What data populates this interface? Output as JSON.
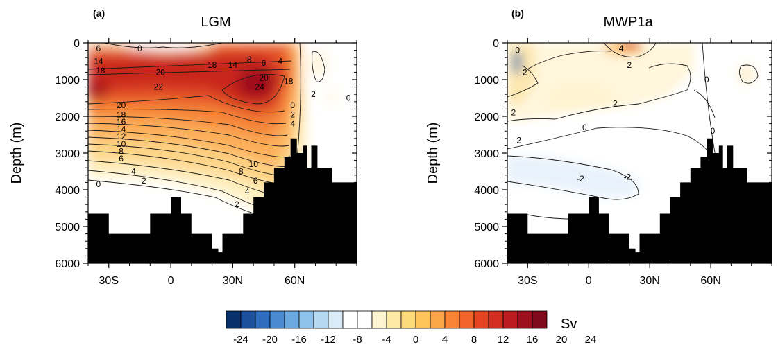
{
  "colorbar": {
    "unit": "Sv",
    "tick_labels": [
      "-24",
      "-20",
      "-16",
      "-12",
      "-8",
      "-4",
      "0",
      "4",
      "8",
      "12",
      "16",
      "20",
      "24"
    ],
    "colors": [
      "#08306b",
      "#1c4f9b",
      "#2f6dbf",
      "#4a8bd0",
      "#6aa8df",
      "#8fc2ea",
      "#b5d9f1",
      "#d9ecf7",
      "#ffffff",
      "#ffffff",
      "#fff4d1",
      "#feeaa6",
      "#fedb7a",
      "#fdc45a",
      "#fca548",
      "#f98438",
      "#f2632c",
      "#e64423",
      "#d32c20",
      "#bb1a1f",
      "#9e0f1e",
      "#7f0a1c"
    ]
  },
  "chart_data": [
    {
      "type": "heatmap",
      "panel_label": "(a)",
      "title": "LGM",
      "xlabel": "",
      "ylabel": "Depth (m)",
      "xlim": [
        -40,
        90
      ],
      "ylim": [
        6000,
        0
      ],
      "x_ticks": [
        -30,
        0,
        30,
        60
      ],
      "x_tick_labels": [
        "30S",
        "0",
        "30N",
        "60N"
      ],
      "y_ticks": [
        0,
        1000,
        2000,
        3000,
        4000,
        5000,
        6000
      ],
      "y_tick_labels": [
        "0",
        "1000",
        "2000",
        "3000",
        "4000",
        "5000",
        "6000"
      ],
      "contour_labels": [
        {
          "text": "0",
          "x": -15,
          "y": 150
        },
        {
          "text": "6",
          "x": -35,
          "y": 150
        },
        {
          "text": "14",
          "x": -35,
          "y": 500
        },
        {
          "text": "18",
          "x": -34,
          "y": 750
        },
        {
          "text": "20",
          "x": -5,
          "y": 800
        },
        {
          "text": "22",
          "x": -6,
          "y": 1200
        },
        {
          "text": "18",
          "x": 20,
          "y": 600
        },
        {
          "text": "14",
          "x": 30,
          "y": 600
        },
        {
          "text": "8",
          "x": 38,
          "y": 450
        },
        {
          "text": "6",
          "x": 45,
          "y": 550
        },
        {
          "text": "4",
          "x": 53,
          "y": 500
        },
        {
          "text": "24",
          "x": 43,
          "y": 1200
        },
        {
          "text": "20",
          "x": 45,
          "y": 950
        },
        {
          "text": "18",
          "x": 57,
          "y": 1050
        },
        {
          "text": "2",
          "x": 69,
          "y": 1400
        },
        {
          "text": "0",
          "x": 86,
          "y": 1500
        },
        {
          "text": "20",
          "x": -24,
          "y": 1700
        },
        {
          "text": "18",
          "x": -24,
          "y": 1950
        },
        {
          "text": "16",
          "x": -24,
          "y": 2150
        },
        {
          "text": "14",
          "x": -24,
          "y": 2350
        },
        {
          "text": "12",
          "x": -24,
          "y": 2550
        },
        {
          "text": "10",
          "x": -24,
          "y": 2750
        },
        {
          "text": "8",
          "x": -24,
          "y": 2950
        },
        {
          "text": "6",
          "x": -24,
          "y": 3150
        },
        {
          "text": "4",
          "x": -18,
          "y": 3500
        },
        {
          "text": "0",
          "x": -35,
          "y": 3850
        },
        {
          "text": "2",
          "x": -13,
          "y": 3750
        },
        {
          "text": "10",
          "x": 40,
          "y": 3300
        },
        {
          "text": "8",
          "x": 34,
          "y": 3500
        },
        {
          "text": "6",
          "x": 41,
          "y": 3750
        },
        {
          "text": "4",
          "x": 37,
          "y": 4050
        },
        {
          "text": "2",
          "x": 32,
          "y": 4400
        },
        {
          "text": "0",
          "x": 59,
          "y": 1700
        },
        {
          "text": "2",
          "x": 59,
          "y": 1950
        },
        {
          "text": "4",
          "x": 59,
          "y": 2200
        }
      ],
      "bathymetry": [
        [
          -40,
          4650
        ],
        [
          -30,
          4650
        ],
        [
          -30,
          5200
        ],
        [
          -10,
          5200
        ],
        [
          -10,
          4650
        ],
        [
          0,
          4650
        ],
        [
          0,
          4200
        ],
        [
          5,
          4200
        ],
        [
          5,
          4650
        ],
        [
          10,
          4650
        ],
        [
          10,
          5200
        ],
        [
          20,
          5200
        ],
        [
          20,
          5600
        ],
        [
          23,
          5600
        ],
        [
          23,
          5700
        ],
        [
          25,
          5700
        ],
        [
          25,
          5200
        ],
        [
          35,
          5200
        ],
        [
          35,
          4650
        ],
        [
          40,
          4650
        ],
        [
          40,
          4200
        ],
        [
          45,
          4200
        ],
        [
          45,
          3800
        ],
        [
          50,
          3800
        ],
        [
          50,
          3400
        ],
        [
          55,
          3400
        ],
        [
          55,
          3100
        ],
        [
          58,
          3100
        ],
        [
          58,
          2600
        ],
        [
          61,
          2600
        ],
        [
          61,
          3000
        ],
        [
          64,
          3000
        ],
        [
          64,
          2800
        ],
        [
          66,
          2800
        ],
        [
          66,
          3400
        ],
        [
          68,
          3400
        ],
        [
          68,
          2800
        ],
        [
          71,
          2800
        ],
        [
          71,
          3400
        ],
        [
          78,
          3400
        ],
        [
          78,
          3800
        ],
        [
          90,
          3800
        ]
      ]
    },
    {
      "type": "heatmap",
      "panel_label": "(b)",
      "title": "MWP1a",
      "xlabel": "",
      "ylabel": "Depth (m)",
      "xlim": [
        -40,
        90
      ],
      "ylim": [
        6000,
        0
      ],
      "x_ticks": [
        -30,
        0,
        30,
        60
      ],
      "x_tick_labels": [
        "30S",
        "0",
        "30N",
        "60N"
      ],
      "y_ticks": [
        0,
        1000,
        2000,
        3000,
        4000,
        5000,
        6000
      ],
      "y_tick_labels": [
        "0",
        "1000",
        "2000",
        "3000",
        "4000",
        "5000",
        "6000"
      ],
      "contour_labels": [
        {
          "text": "4",
          "x": 16,
          "y": 150
        },
        {
          "text": "0",
          "x": -35,
          "y": 200
        },
        {
          "text": "2",
          "x": 20,
          "y": 600
        },
        {
          "text": "-2",
          "x": -32,
          "y": 800
        },
        {
          "text": "0",
          "x": 58,
          "y": 1000
        },
        {
          "text": "2",
          "x": 13,
          "y": 1650
        },
        {
          "text": "2",
          "x": -37,
          "y": 1900
        },
        {
          "text": "0",
          "x": -2,
          "y": 2300
        },
        {
          "text": "0",
          "x": 61,
          "y": 2400
        },
        {
          "text": "-2",
          "x": -35,
          "y": 2650
        },
        {
          "text": "-2",
          "x": -4,
          "y": 3700
        },
        {
          "text": "-2",
          "x": 19,
          "y": 3650
        }
      ],
      "bathymetry": [
        [
          -40,
          4650
        ],
        [
          -30,
          4650
        ],
        [
          -30,
          5200
        ],
        [
          -10,
          5200
        ],
        [
          -10,
          4650
        ],
        [
          0,
          4650
        ],
        [
          0,
          4200
        ],
        [
          5,
          4200
        ],
        [
          5,
          4650
        ],
        [
          10,
          4650
        ],
        [
          10,
          5200
        ],
        [
          20,
          5200
        ],
        [
          20,
          5600
        ],
        [
          23,
          5600
        ],
        [
          23,
          5700
        ],
        [
          25,
          5700
        ],
        [
          25,
          5200
        ],
        [
          35,
          5200
        ],
        [
          35,
          4650
        ],
        [
          40,
          4650
        ],
        [
          40,
          4200
        ],
        [
          45,
          4200
        ],
        [
          45,
          3800
        ],
        [
          50,
          3800
        ],
        [
          50,
          3400
        ],
        [
          55,
          3400
        ],
        [
          55,
          3100
        ],
        [
          58,
          3100
        ],
        [
          58,
          2600
        ],
        [
          61,
          2600
        ],
        [
          61,
          3000
        ],
        [
          64,
          3000
        ],
        [
          64,
          2800
        ],
        [
          66,
          2800
        ],
        [
          66,
          3400
        ],
        [
          68,
          3400
        ],
        [
          68,
          2800
        ],
        [
          71,
          2800
        ],
        [
          71,
          3400
        ],
        [
          78,
          3400
        ],
        [
          78,
          3800
        ],
        [
          90,
          3800
        ]
      ]
    }
  ]
}
